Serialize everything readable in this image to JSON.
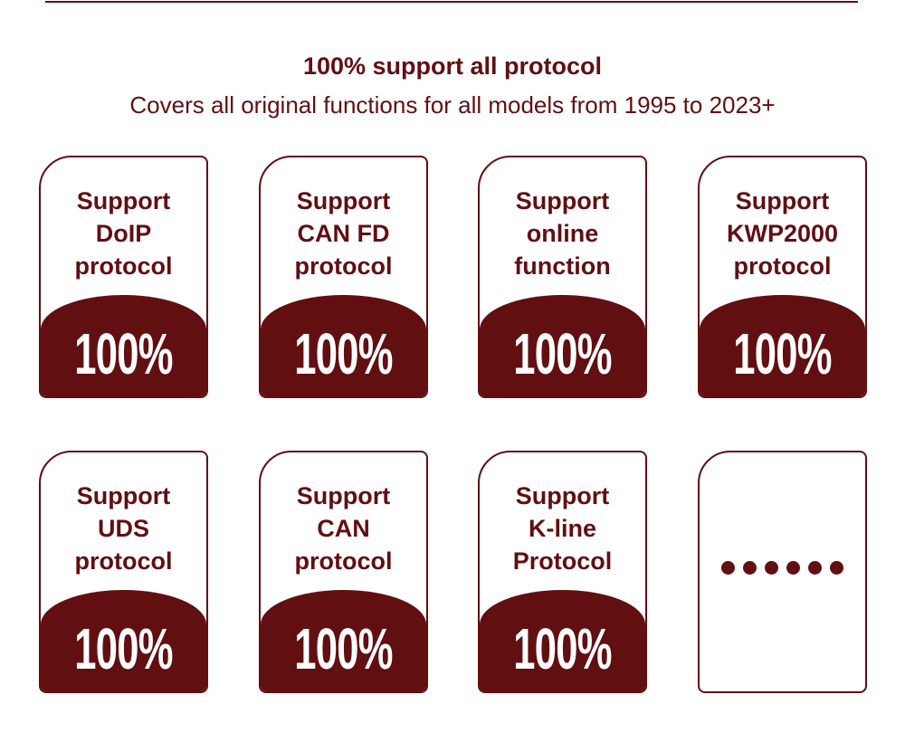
{
  "header": {
    "title": "100% support all protocol",
    "subtitle": "Covers all original functions for all models from 1995 to 2023+"
  },
  "colors": {
    "accent": "#620f12"
  },
  "cards": [
    {
      "lines": [
        "Support",
        "DoIP",
        "protocol"
      ],
      "value": "100%"
    },
    {
      "lines": [
        "Support",
        "CAN FD",
        "protocol"
      ],
      "value": "100%"
    },
    {
      "lines": [
        "Support",
        "online",
        "function"
      ],
      "value": "100%"
    },
    {
      "lines": [
        "Support",
        "KWP2000",
        "protocol"
      ],
      "value": "100%"
    },
    {
      "lines": [
        "Support",
        "UDS",
        "protocol"
      ],
      "value": "100%"
    },
    {
      "lines": [
        "Support",
        "CAN",
        "protocol"
      ],
      "value": "100%"
    },
    {
      "lines": [
        "Support",
        "K-line",
        "Protocol"
      ],
      "value": "100%"
    }
  ],
  "more_card": {
    "icon": "ellipsis-icon",
    "dot_count": 6
  }
}
